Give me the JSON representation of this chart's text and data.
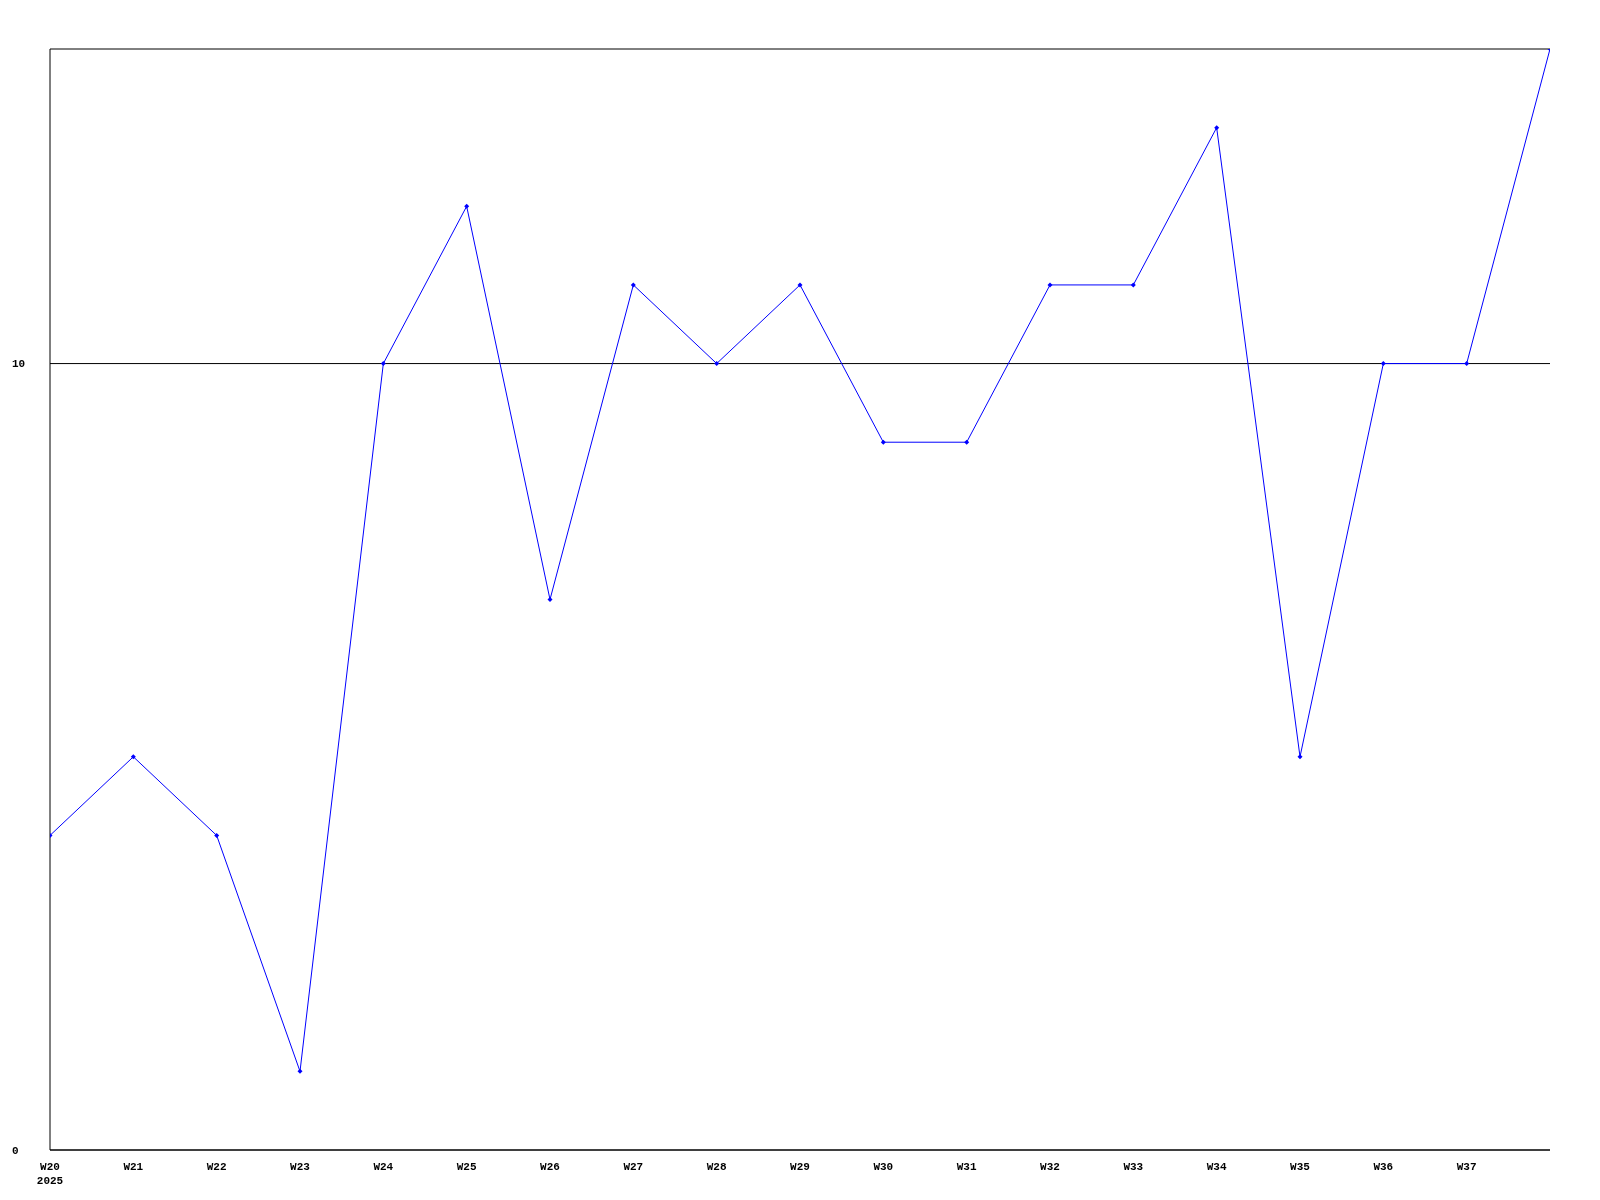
{
  "chart_data": {
    "type": "line",
    "categories": [
      "W20\n2025",
      "W21",
      "W22",
      "W23",
      "W24",
      "W25",
      "W26",
      "W27",
      "W28",
      "W29",
      "W30",
      "W31",
      "W32",
      "W33",
      "W34",
      "W35",
      "W36",
      "W37",
      null
    ],
    "series": [
      {
        "color": "#0000ff",
        "values": [
          4,
          5,
          4,
          1,
          10,
          12,
          7,
          11,
          10,
          11,
          9,
          9,
          11,
          11,
          13,
          5,
          10,
          10,
          14
        ]
      }
    ],
    "ylim": [
      0,
      14
    ],
    "yticks": [
      0,
      10
    ],
    "grid": "y",
    "marker": "diamond",
    "line_style": "solid",
    "legend": false
  }
}
